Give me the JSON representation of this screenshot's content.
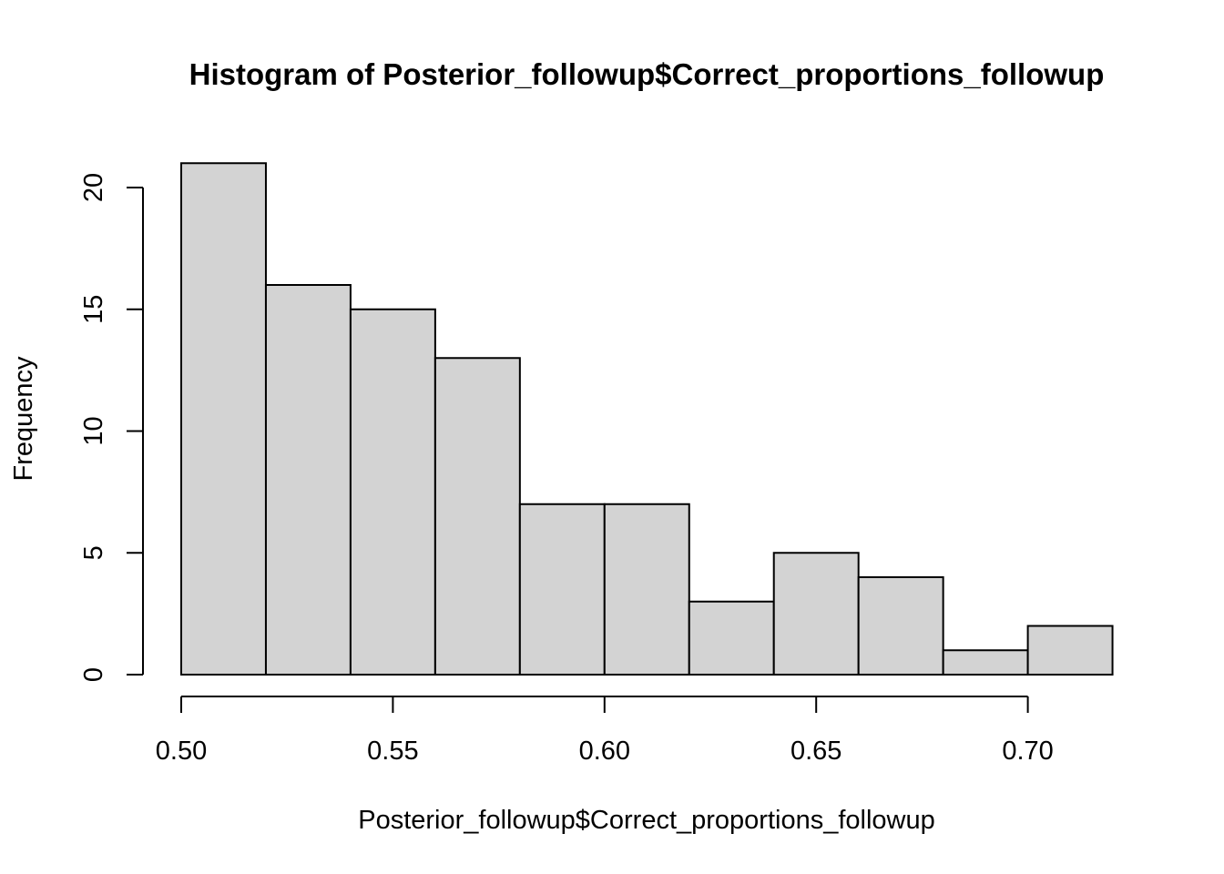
{
  "chart_data": {
    "type": "bar",
    "subtype": "histogram",
    "title": "Histogram of Posterior_followup$Correct_proportions_followup",
    "xlabel": "Posterior_followup$Correct_proportions_followup",
    "ylabel": "Frequency",
    "bins": [
      {
        "start": 0.5,
        "end": 0.52,
        "count": 21
      },
      {
        "start": 0.52,
        "end": 0.54,
        "count": 16
      },
      {
        "start": 0.54,
        "end": 0.56,
        "count": 15
      },
      {
        "start": 0.56,
        "end": 0.58,
        "count": 13
      },
      {
        "start": 0.58,
        "end": 0.6,
        "count": 7
      },
      {
        "start": 0.6,
        "end": 0.62,
        "count": 7
      },
      {
        "start": 0.62,
        "end": 0.64,
        "count": 3
      },
      {
        "start": 0.64,
        "end": 0.66,
        "count": 5
      },
      {
        "start": 0.66,
        "end": 0.68,
        "count": 4
      },
      {
        "start": 0.68,
        "end": 0.7,
        "count": 1
      },
      {
        "start": 0.7,
        "end": 0.72,
        "count": 2
      }
    ],
    "x_ticks": [
      "0.50",
      "0.55",
      "0.60",
      "0.65",
      "0.70"
    ],
    "y_ticks": [
      "0",
      "5",
      "10",
      "15",
      "20"
    ],
    "xlim": [
      0.5,
      0.72
    ],
    "ylim": [
      0,
      21
    ],
    "bar_color": "#d3d3d3",
    "grid": false,
    "legend": "none"
  }
}
